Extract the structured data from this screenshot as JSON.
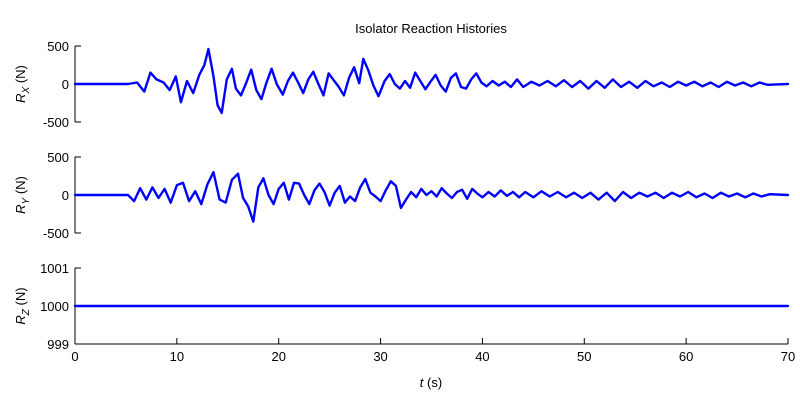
{
  "chart_data": {
    "type": "line",
    "title": "Isolator Reaction Histories",
    "xlabel": "t (s)",
    "xlabel_var": "t",
    "xlabel_unit": " (s)",
    "xlim": [
      0,
      70
    ],
    "xticks": [
      0,
      10,
      20,
      30,
      40,
      50,
      60,
      70
    ],
    "line_color": "#0000ff",
    "subplots": [
      {
        "id": "rx",
        "ylabel": "R_X (N)",
        "ylabel_base": "R",
        "ylabel_sub": "X",
        "ylabel_unit": " (N)",
        "ylim": [
          -500,
          500
        ],
        "yticks": [
          -500,
          0,
          500
        ],
        "series": {
          "name": "R_X",
          "x": [
            0,
            5.2,
            6.1,
            6.8,
            7.4,
            8.0,
            8.7,
            9.3,
            9.9,
            10.4,
            11.0,
            11.6,
            12.2,
            12.7,
            13.1,
            13.6,
            14.0,
            14.4,
            14.9,
            15.4,
            15.8,
            16.3,
            16.8,
            17.3,
            17.8,
            18.3,
            18.8,
            19.3,
            19.8,
            20.4,
            20.9,
            21.4,
            21.9,
            22.4,
            22.9,
            23.4,
            23.9,
            24.4,
            24.9,
            25.4,
            25.9,
            26.4,
            26.9,
            27.4,
            27.9,
            28.3,
            28.8,
            29.3,
            29.8,
            30.4,
            30.9,
            31.4,
            31.9,
            32.4,
            32.9,
            33.4,
            33.9,
            34.4,
            34.9,
            35.4,
            35.9,
            36.4,
            36.9,
            37.4,
            37.9,
            38.4,
            38.9,
            39.4,
            39.9,
            40.4,
            41.0,
            41.6,
            42.2,
            42.8,
            43.4,
            44.0,
            44.8,
            45.6,
            46.4,
            47.2,
            48.0,
            48.8,
            49.6,
            50.4,
            51.2,
            52.0,
            52.8,
            53.6,
            54.4,
            55.2,
            56.0,
            56.8,
            57.6,
            58.4,
            59.2,
            60.0,
            60.8,
            61.6,
            62.4,
            63.2,
            64.0,
            64.8,
            65.6,
            66.4,
            67.2,
            68.0,
            70.0
          ],
          "y": [
            0,
            0,
            20,
            -100,
            150,
            60,
            20,
            -80,
            100,
            -240,
            40,
            -120,
            120,
            250,
            460,
            100,
            -280,
            -380,
            60,
            200,
            -60,
            -150,
            10,
            190,
            -80,
            -200,
            20,
            200,
            0,
            -140,
            40,
            150,
            20,
            -120,
            60,
            160,
            0,
            -150,
            140,
            50,
            -40,
            -150,
            80,
            220,
            10,
            330,
            180,
            -20,
            -160,
            40,
            130,
            0,
            -60,
            40,
            -50,
            150,
            40,
            -70,
            30,
            120,
            -20,
            -100,
            80,
            140,
            -40,
            -60,
            60,
            140,
            20,
            -30,
            40,
            -20,
            30,
            -40,
            60,
            -40,
            30,
            -20,
            40,
            -30,
            50,
            -40,
            40,
            -60,
            40,
            -50,
            60,
            -40,
            30,
            -50,
            40,
            -30,
            20,
            -40,
            30,
            -20,
            30,
            -30,
            20,
            -40,
            30,
            -20,
            20,
            -30,
            20,
            -10,
            0
          ]
        }
      },
      {
        "id": "ry",
        "ylabel": "R_Y (N)",
        "ylabel_base": "R",
        "ylabel_sub": "Y",
        "ylabel_unit": " (N)",
        "ylim": [
          -500,
          500
        ],
        "yticks": [
          -500,
          0,
          500
        ],
        "series": {
          "name": "R_Y",
          "x": [
            0,
            5.2,
            5.8,
            6.4,
            7.0,
            7.6,
            8.2,
            8.8,
            9.4,
            10.0,
            10.6,
            11.2,
            11.8,
            12.4,
            13.0,
            13.6,
            14.2,
            14.8,
            15.4,
            16.0,
            16.5,
            17.0,
            17.5,
            18.0,
            18.5,
            19.0,
            19.5,
            20.0,
            20.5,
            21.0,
            21.5,
            22.0,
            22.5,
            23.0,
            23.5,
            24.0,
            24.5,
            25.0,
            25.5,
            26.0,
            26.5,
            27.0,
            27.5,
            28.0,
            28.5,
            29.0,
            29.5,
            30.0,
            30.5,
            31.0,
            31.5,
            32.0,
            32.5,
            33.0,
            33.5,
            34.0,
            34.5,
            35.0,
            35.5,
            36.0,
            36.5,
            37.0,
            37.5,
            38.0,
            38.5,
            39.0,
            39.5,
            40.0,
            40.6,
            41.2,
            41.8,
            42.4,
            43.0,
            43.6,
            44.2,
            45.0,
            45.8,
            46.6,
            47.4,
            48.2,
            49.0,
            49.8,
            50.6,
            51.4,
            52.2,
            53.0,
            53.8,
            54.6,
            55.4,
            56.2,
            57.0,
            57.8,
            58.6,
            59.4,
            60.2,
            61.0,
            61.8,
            62.6,
            63.4,
            64.2,
            65.0,
            65.8,
            66.6,
            67.4,
            68.2,
            70.0
          ],
          "y": [
            0,
            0,
            -80,
            90,
            -60,
            100,
            -40,
            80,
            -100,
            130,
            160,
            -80,
            50,
            -120,
            140,
            300,
            -60,
            -100,
            200,
            280,
            -40,
            -150,
            -350,
            100,
            220,
            0,
            -120,
            80,
            160,
            -60,
            160,
            150,
            0,
            -120,
            60,
            150,
            40,
            -140,
            30,
            120,
            -100,
            -20,
            -80,
            100,
            210,
            30,
            -20,
            -80,
            60,
            180,
            120,
            -170,
            -60,
            40,
            -30,
            80,
            0,
            50,
            -20,
            90,
            20,
            -40,
            40,
            70,
            -50,
            80,
            20,
            -30,
            40,
            -20,
            60,
            -10,
            40,
            -30,
            40,
            -30,
            50,
            -20,
            40,
            -30,
            30,
            -40,
            30,
            -60,
            30,
            -80,
            40,
            -40,
            30,
            -20,
            30,
            -40,
            30,
            -20,
            40,
            -30,
            20,
            -40,
            30,
            -20,
            20,
            -30,
            20,
            -20,
            10,
            0
          ]
        }
      },
      {
        "id": "rz",
        "ylabel": "R_Z (N)",
        "ylabel_base": "R",
        "ylabel_sub": "Z",
        "ylabel_unit": " (N)",
        "ylim": [
          999,
          1001
        ],
        "yticks": [
          999,
          1000,
          1001
        ],
        "series": {
          "name": "R_Z",
          "x": [
            0,
            70
          ],
          "y": [
            1000,
            1000
          ]
        }
      }
    ]
  }
}
